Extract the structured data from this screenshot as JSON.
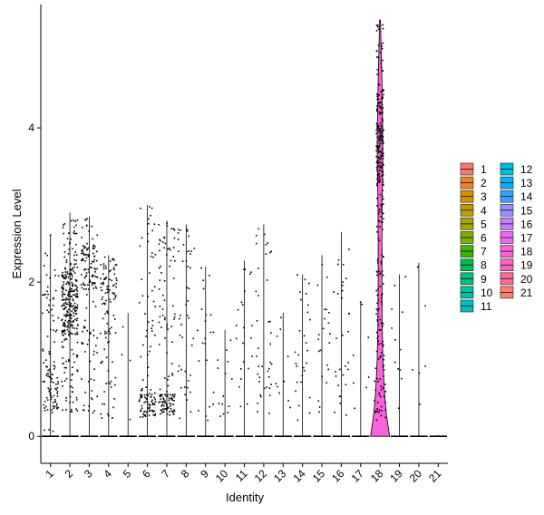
{
  "chart_data": {
    "type": "violin",
    "title": "",
    "xlabel": "Identity",
    "ylabel": "Expression Level",
    "ylim": [
      -0.35,
      5.6
    ],
    "yticks": [
      0,
      2,
      4
    ],
    "categories": [
      "1",
      "2",
      "3",
      "4",
      "5",
      "6",
      "7",
      "8",
      "9",
      "10",
      "11",
      "12",
      "13",
      "14",
      "15",
      "16",
      "17",
      "18",
      "19",
      "20",
      "21"
    ],
    "colors": [
      "#F8766D",
      "#EA8331",
      "#D89000",
      "#C09B00",
      "#A3A500",
      "#7CAE00",
      "#39B600",
      "#00BB4E",
      "#00BF7D",
      "#00C1A3",
      "#00BFC4",
      "#00BAE0",
      "#00B0F6",
      "#35A2FF",
      "#9590FF",
      "#C77CFF",
      "#E76BF3",
      "#FA62DB",
      "#FF62BC",
      "#FF6A98",
      "#FD7D6F"
    ],
    "max_values": [
      2.62,
      2.9,
      2.85,
      2.35,
      1.6,
      3.0,
      2.8,
      2.75,
      2.2,
      1.38,
      2.28,
      2.75,
      1.6,
      2.1,
      2.35,
      2.65,
      1.75,
      5.4,
      2.1,
      2.25,
      0.02
    ],
    "violin_18_shape": {
      "y": [
        0,
        0.3,
        0.6,
        1.0,
        1.5,
        2.0,
        2.5,
        3.0,
        3.5,
        3.8,
        4.2,
        4.6,
        5.0,
        5.4
      ],
      "half_width_relative": [
        1.0,
        0.65,
        0.45,
        0.3,
        0.22,
        0.2,
        0.2,
        0.22,
        0.28,
        0.3,
        0.26,
        0.2,
        0.12,
        0.05
      ]
    },
    "legend": {
      "position": "right",
      "entries": [
        "1",
        "2",
        "3",
        "4",
        "5",
        "6",
        "7",
        "8",
        "9",
        "10",
        "11",
        "12",
        "13",
        "14",
        "15",
        "16",
        "17",
        "18",
        "19",
        "20",
        "21"
      ]
    },
    "grid": false
  }
}
